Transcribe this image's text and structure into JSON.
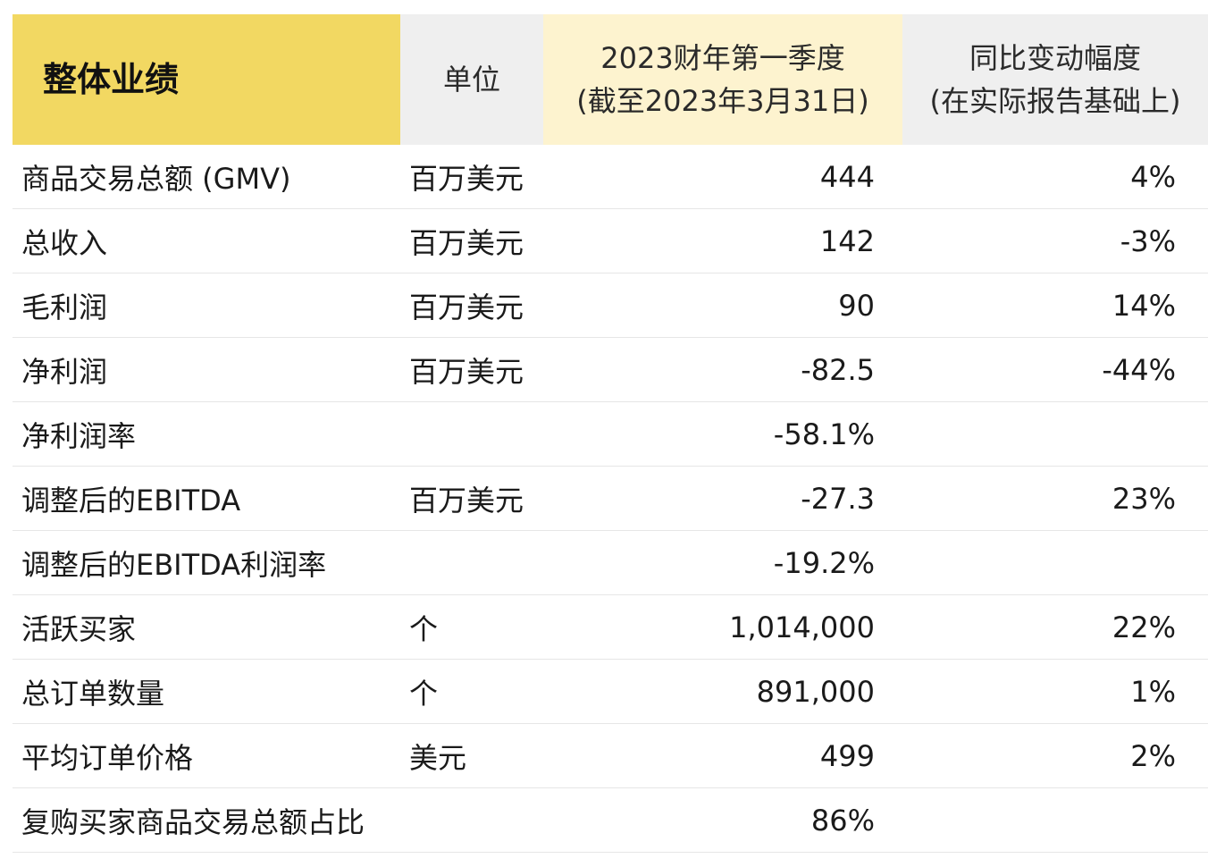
{
  "header": {
    "title": "整体业绩",
    "unit": "单位",
    "q1_line1": "2023财年第一季度",
    "q1_line2": "(截至2023年3月31日)",
    "yoy_line1": "同比变动幅度",
    "yoy_line2": "(在实际报告基础上)"
  },
  "colors": {
    "title_bg": "#f2d862",
    "q1_bg": "#fdf3cf",
    "gray_bg": "#efefef"
  },
  "rows": [
    {
      "name": "商品交易总额 (GMV)",
      "unit": "百万美元",
      "q1": "444",
      "yoy": "4%"
    },
    {
      "name": "总收入",
      "unit": "百万美元",
      "q1": "142",
      "yoy": "-3%"
    },
    {
      "name": "毛利润",
      "unit": "百万美元",
      "q1": "90",
      "yoy": "14%"
    },
    {
      "name": "净利润",
      "unit": "百万美元",
      "q1": "-82.5",
      "yoy": "-44%"
    },
    {
      "name": "净利润率",
      "unit": "",
      "q1": "-58.1%",
      "yoy": ""
    },
    {
      "name": "调整后的EBITDA",
      "unit": "百万美元",
      "q1": "-27.3",
      "yoy": "23%"
    },
    {
      "name": "调整后的EBITDA利润率",
      "unit": "",
      "q1": "-19.2%",
      "yoy": ""
    },
    {
      "name": "活跃买家",
      "unit": "个",
      "q1": "1,014,000",
      "yoy": "22%"
    },
    {
      "name": "总订单数量",
      "unit": "个",
      "q1": "891,000",
      "yoy": "1%"
    },
    {
      "name": "平均订单价格",
      "unit": "美元",
      "q1": "499",
      "yoy": "2%"
    },
    {
      "name": "复购买家商品交易总额占比",
      "unit": "",
      "q1": "86%",
      "yoy": ""
    }
  ]
}
